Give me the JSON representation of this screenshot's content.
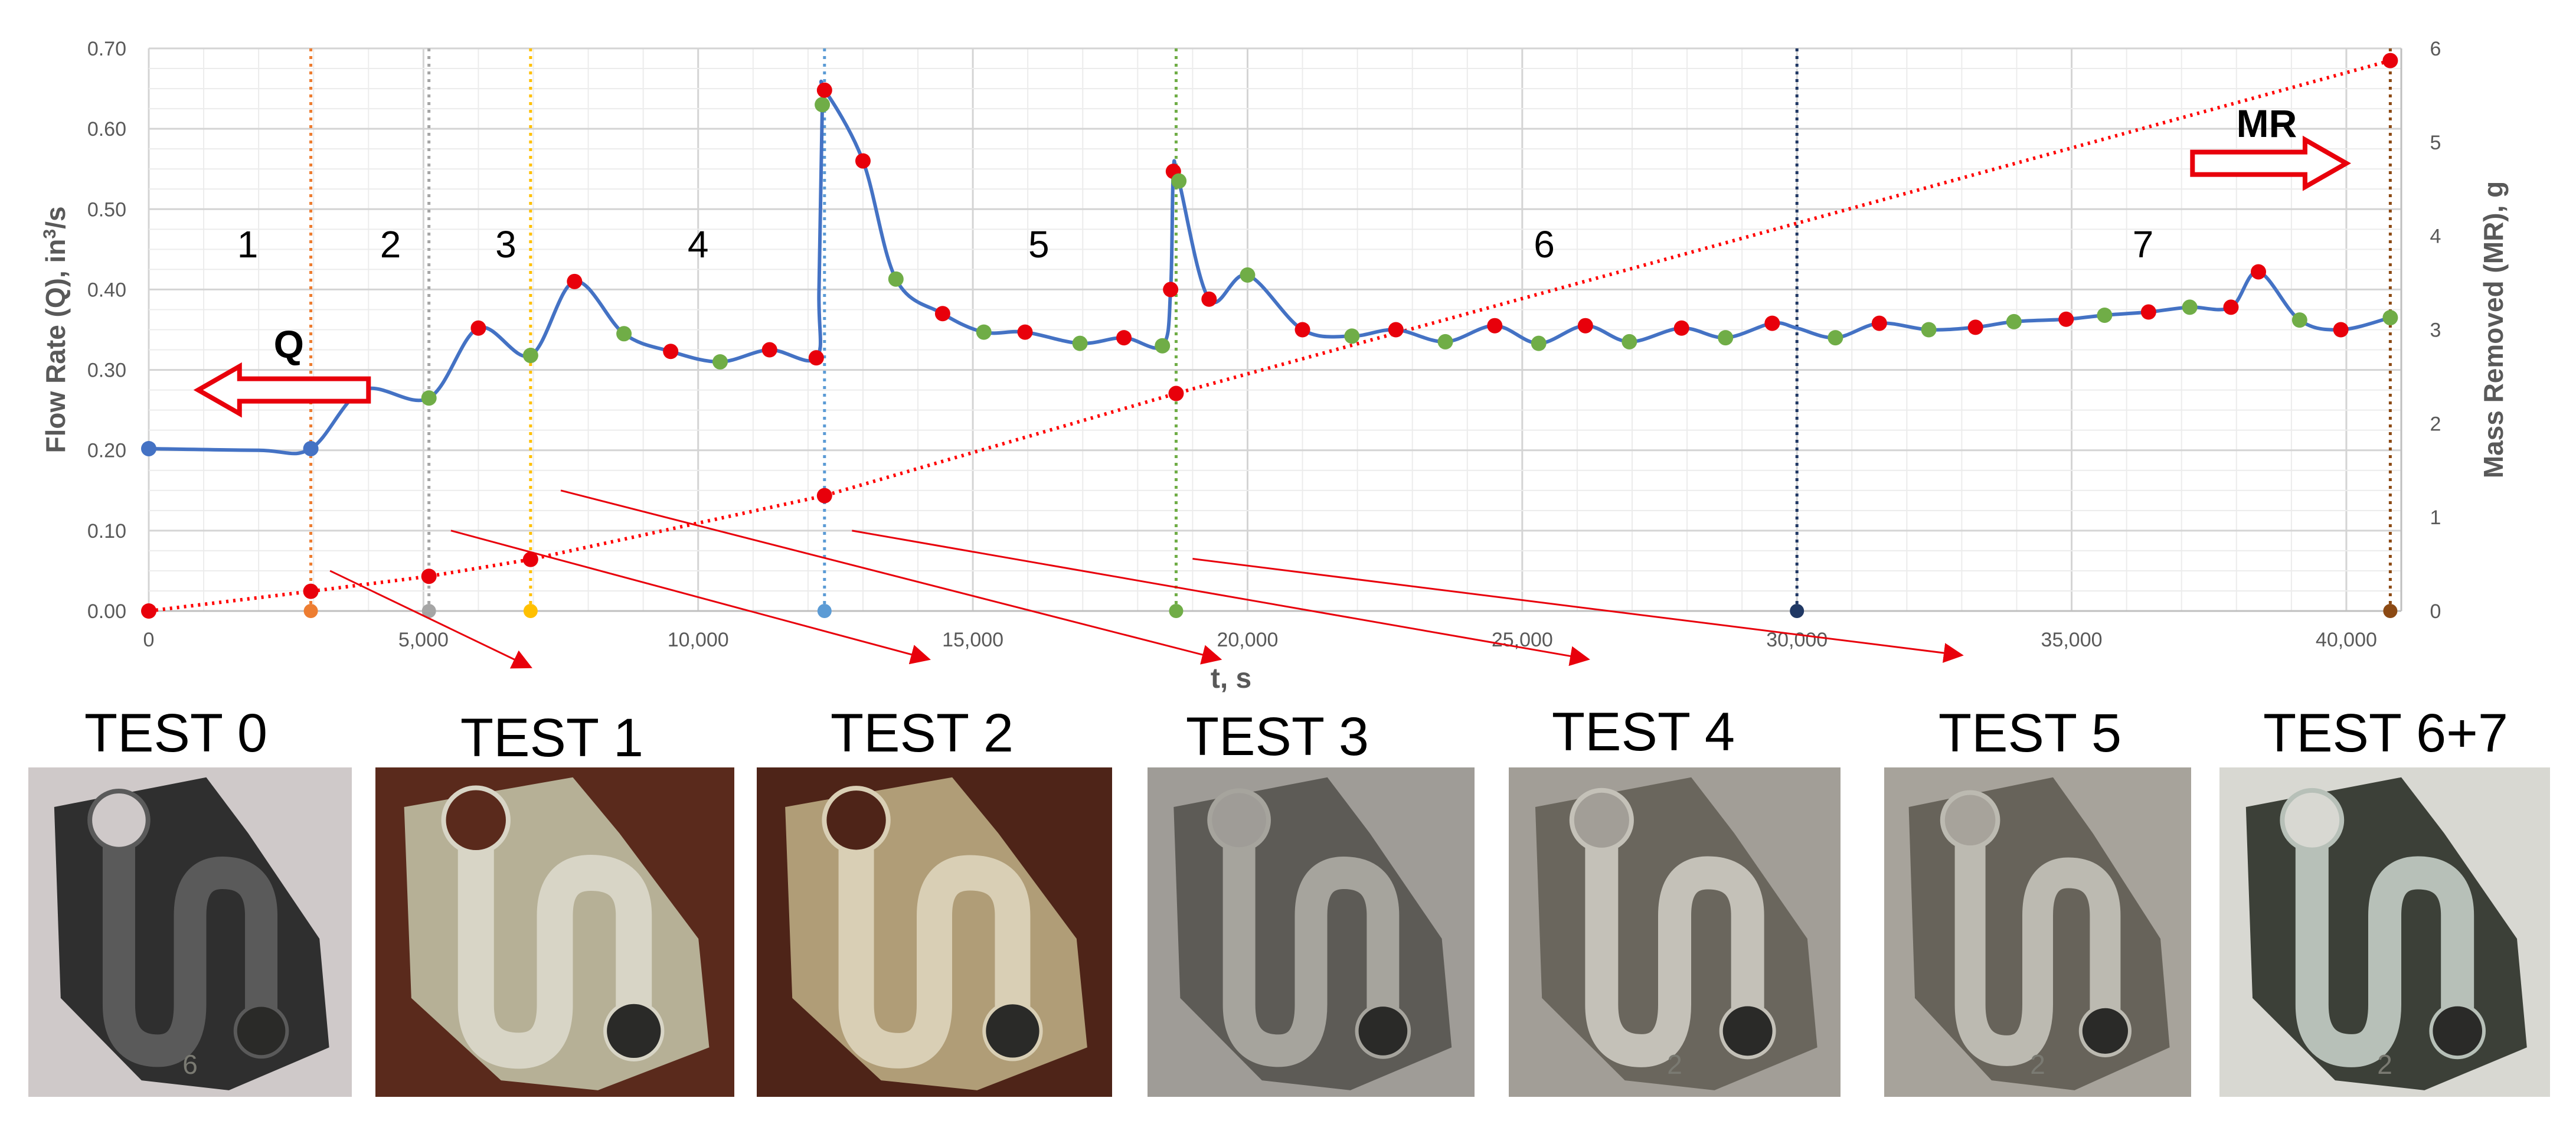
{
  "chart_data": {
    "type": "line",
    "xlabel": "t, s",
    "ylabel_left": "Flow Rate (Q), in³/s",
    "ylabel_left_parts": {
      "pre": "Flow Rate (Q), in",
      "sup": "3",
      "post": "/s"
    },
    "ylabel_right": "Mass Removed (MR), g",
    "xlim": [
      0,
      41000
    ],
    "ylim_left": [
      0,
      0.7
    ],
    "ylim_right": [
      0,
      6
    ],
    "x_ticks": [
      0,
      5000,
      10000,
      15000,
      20000,
      25000,
      30000,
      35000,
      40000
    ],
    "x_tick_labels": [
      "0",
      "5,000",
      "10,000",
      "15,000",
      "20,000",
      "25,000",
      "30,000",
      "35,000",
      "40,000"
    ],
    "y_left_ticks": [
      0,
      0.1,
      0.2,
      0.3,
      0.4,
      0.5,
      0.6,
      0.7
    ],
    "y_left_tick_labels": [
      "0.00",
      "0.10",
      "0.20",
      "0.30",
      "0.40",
      "0.50",
      "0.60",
      "0.70"
    ],
    "y_right_ticks": [
      0,
      1,
      2,
      3,
      4,
      5,
      6
    ],
    "y_right_tick_labels": [
      "0",
      "1",
      "2",
      "3",
      "4",
      "5",
      "6"
    ],
    "grid": true,
    "series": [
      {
        "axis": "left",
        "color": "#4472c4",
        "x": [
          0,
          2000,
          2950,
          3900,
          5100,
          6000,
          6950,
          7750,
          8650,
          9500,
          10400,
          11300,
          12150,
          12200,
          12260,
          12300,
          13000,
          13600,
          14450,
          15200,
          15950,
          16950,
          17750,
          18450,
          18600,
          18650,
          18750,
          19300,
          20000,
          21000,
          21900,
          22700,
          23600,
          24500,
          25300,
          26150,
          26950,
          27900,
          28700,
          29550,
          30000,
          30700,
          31500,
          32400,
          33250,
          33950,
          34900,
          35600,
          36400,
          37150,
          37900,
          38400,
          39150,
          39900,
          40800
        ],
        "y": [
          0.202,
          0.2,
          0.202,
          0.275,
          0.265,
          0.352,
          0.318,
          0.41,
          0.345,
          0.323,
          0.31,
          0.325,
          0.315,
          0.4,
          0.63,
          0.648,
          0.56,
          0.413,
          0.37,
          0.347,
          0.347,
          0.333,
          0.34,
          0.33,
          0.4,
          0.547,
          0.535,
          0.388,
          0.418,
          0.35,
          0.342,
          0.35,
          0.335,
          0.355,
          0.333,
          0.355,
          0.335,
          0.352,
          0.34,
          0.358,
          0.352,
          0.34,
          0.358,
          0.35,
          0.353,
          0.36,
          0.363,
          0.368,
          0.372,
          0.378,
          0.378,
          0.422,
          0.362,
          0.35,
          0.365
        ]
      },
      {
        "axis": "right",
        "color": "#ff0000",
        "x": [
          0,
          2950,
          5100,
          6950,
          12300,
          18700,
          40800
        ],
        "y": [
          0,
          0.21,
          0.37,
          0.55,
          1.23,
          2.32,
          5.87
        ]
      }
    ],
    "vertical_lines": [
      {
        "x": 2950,
        "color": "#ed7d31"
      },
      {
        "x": 5100,
        "color": "#a5a5a5"
      },
      {
        "x": 6950,
        "color": "#ffc000"
      },
      {
        "x": 12300,
        "color": "#5b9bd5"
      },
      {
        "x": 18700,
        "color": "#70ad47"
      },
      {
        "x": 30000,
        "color": "#203864"
      },
      {
        "x": 40800,
        "color": "#8c4a14"
      }
    ],
    "segment_labels": [
      {
        "text": "1",
        "x": 1800,
        "y": 0.44
      },
      {
        "text": "2",
        "x": 4400,
        "y": 0.44
      },
      {
        "text": "3",
        "x": 6500,
        "y": 0.44
      },
      {
        "text": "4",
        "x": 10000,
        "y": 0.44
      },
      {
        "text": "5",
        "x": 16200,
        "y": 0.44
      },
      {
        "text": "6",
        "x": 25400,
        "y": 0.44
      },
      {
        "text": "7",
        "x": 36300,
        "y": 0.44
      }
    ],
    "arrow_labels": {
      "q": "Q",
      "mr": "MR"
    }
  },
  "tests": [
    {
      "label": "TEST 0",
      "bg": "#cfc9c9",
      "part": "#2f2f2f",
      "channel": "#5a5a5a",
      "mark": "6"
    },
    {
      "label": "TEST 1",
      "bg": "#5a2a1c",
      "part": "#b6b096",
      "channel": "#d8d5c6",
      "mark": ""
    },
    {
      "label": "TEST 2",
      "bg": "#4e2418",
      "part": "#b09d77",
      "channel": "#d9cfb5",
      "mark": ""
    },
    {
      "label": "TEST 3",
      "bg": "#9f9c97",
      "part": "#5d5b56",
      "channel": "#a6a49d",
      "mark": ""
    },
    {
      "label": "TEST 4",
      "bg": "#a29e97",
      "part": "#6a665d",
      "channel": "#c4c1b8",
      "mark": "2"
    },
    {
      "label": "TEST 5",
      "bg": "#a7a39b",
      "part": "#67635a",
      "channel": "#bcbab1",
      "mark": "2"
    },
    {
      "label": "TEST 6+7",
      "bg": "#d8d8d2",
      "part": "#3c4038",
      "channel": "#b7c0b8",
      "mark": "2"
    }
  ]
}
